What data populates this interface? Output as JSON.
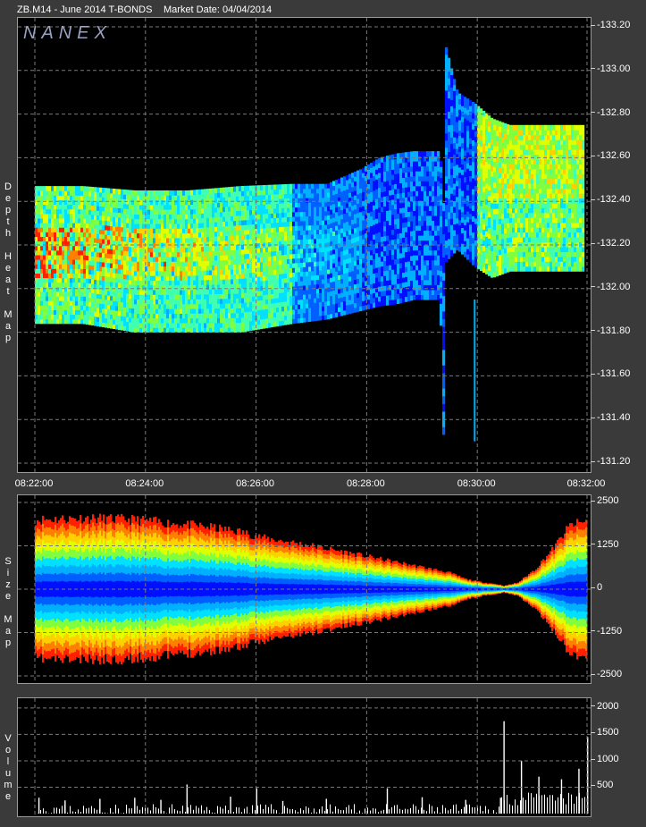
{
  "header": {
    "symbol": "ZB.M14 - June 2014 T-BONDS",
    "market_date": "Market Date: 04/04/2014"
  },
  "logo": "NANEX",
  "colors": {
    "background": "#3a3a3a",
    "panel": "#000000",
    "grid": "#7a7a7a",
    "heat_scale": [
      "#0010ff",
      "#0060ff",
      "#00b0ff",
      "#00e0ff",
      "#40ffb0",
      "#80ff40",
      "#e0ff00",
      "#ffd000",
      "#ff8000",
      "#ff2000"
    ]
  },
  "chart_data": [
    {
      "type": "heatmap",
      "name": "depth-heat-map",
      "ylabel_chars": [
        "D",
        "e",
        "p",
        "t",
        "h",
        " ",
        "H",
        "e",
        "a",
        "t",
        " ",
        "M",
        "a",
        "p"
      ],
      "x_ticks": [
        "08:22:00",
        "08:24:00",
        "08:26:00",
        "08:28:00",
        "08:30:00",
        "08:32:00"
      ],
      "y_ticks": [
        "-133.20",
        "-133.00",
        "-132.80",
        "-132.60",
        "-132.40",
        "-132.20",
        "-132.00",
        "-131.80",
        "-131.60",
        "-131.40",
        "-131.20"
      ],
      "ylim": [
        131.2,
        133.2
      ],
      "xlim_minutes": [
        8.33,
        10.33
      ],
      "grid": true,
      "price_band_top": [
        132.47,
        132.47,
        132.45,
        132.45,
        132.47,
        132.48,
        132.48,
        132.55,
        132.6,
        132.62,
        132.63,
        132.63,
        132.38,
        133.12,
        132.9,
        132.85,
        132.78,
        132.75
      ],
      "price_band_bottom": [
        131.84,
        131.84,
        131.8,
        131.8,
        131.8,
        131.84,
        131.86,
        131.9,
        131.92,
        131.93,
        131.95,
        131.95,
        131.3,
        132.12,
        132.18,
        132.1,
        132.05,
        132.08
      ],
      "band_times_minutes": [
        8.33,
        8.6,
        8.9,
        9.2,
        9.5,
        9.8,
        10.0,
        10.2,
        10.3,
        10.4,
        10.5,
        10.65,
        10.67,
        10.68,
        10.75,
        10.85,
        10.95,
        11.05
      ]
    },
    {
      "type": "area",
      "name": "size-map",
      "ylabel_chars": [
        "S",
        "i",
        "z",
        "e",
        " ",
        "M",
        "a",
        "p"
      ],
      "y_ticks": [
        "2500",
        "1250",
        "0",
        "-1250",
        "-2500"
      ],
      "ylim": [
        -2500,
        2500
      ],
      "grid": true,
      "envelope": [
        2050,
        2100,
        2050,
        1950,
        1850,
        1700,
        1500,
        1300,
        1100,
        900,
        700,
        500,
        300,
        200,
        150,
        100,
        200,
        600,
        1200,
        1900,
        2000
      ],
      "envelope_times_minutes": [
        8.33,
        8.6,
        8.9,
        9.1,
        9.3,
        9.5,
        9.65,
        9.9,
        10.1,
        10.3,
        10.5,
        10.7,
        10.8,
        10.9,
        10.98,
        11.02,
        11.1,
        11.2,
        11.3,
        11.4,
        11.5
      ]
    },
    {
      "type": "bar",
      "name": "volume",
      "ylabel_chars": [
        "V",
        "o",
        "l",
        "u",
        "m",
        "e"
      ],
      "y_ticks": [
        "2000",
        "1500",
        "1000",
        "500"
      ],
      "ylim": [
        0,
        2100
      ],
      "grid": true,
      "spikes": [
        {
          "t": 8.35,
          "v": 300
        },
        {
          "t": 8.5,
          "v": 250
        },
        {
          "t": 8.7,
          "v": 280
        },
        {
          "t": 8.9,
          "v": 300
        },
        {
          "t": 9.05,
          "v": 260
        },
        {
          "t": 9.2,
          "v": 550
        },
        {
          "t": 9.45,
          "v": 320
        },
        {
          "t": 9.6,
          "v": 480
        },
        {
          "t": 9.75,
          "v": 240
        },
        {
          "t": 10.0,
          "v": 280
        },
        {
          "t": 10.35,
          "v": 480
        },
        {
          "t": 10.55,
          "v": 310
        },
        {
          "t": 10.8,
          "v": 260
        },
        {
          "t": 11.0,
          "v": 300
        },
        {
          "t": 11.02,
          "v": 1750
        },
        {
          "t": 11.12,
          "v": 1000
        },
        {
          "t": 11.22,
          "v": 700
        },
        {
          "t": 11.35,
          "v": 650
        },
        {
          "t": 11.45,
          "v": 850
        },
        {
          "t": 11.5,
          "v": 1450
        }
      ]
    }
  ]
}
